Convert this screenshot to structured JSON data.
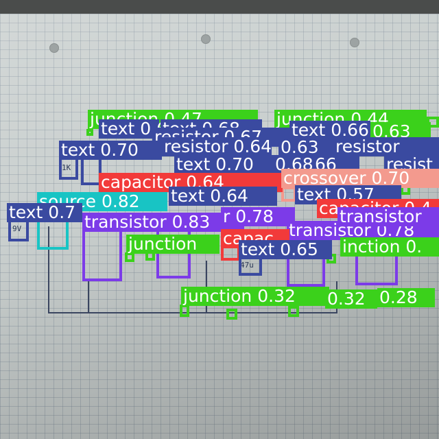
{
  "detections": [
    {
      "label": "junction 0.47",
      "cls": "junction"
    },
    {
      "label": "junction 0.44",
      "cls": "junction"
    },
    {
      "label": "text 0.68",
      "cls": "text"
    },
    {
      "label": "text 0.68",
      "cls": "text"
    },
    {
      "label": "resistor 0.67",
      "cls": "resistor"
    },
    {
      "label": "text 0.66",
      "cls": "text"
    },
    {
      "label": "0.63",
      "cls": "junction"
    },
    {
      "label": "text 0.70",
      "cls": "text"
    },
    {
      "label": "resistor 0.64",
      "cls": "resistor"
    },
    {
      "label": "0.63",
      "cls": "resistor"
    },
    {
      "label": "resistor",
      "cls": "resistor"
    },
    {
      "label": "text 0.70",
      "cls": "text"
    },
    {
      "label": "0.68",
      "cls": "text"
    },
    {
      "label": "66",
      "cls": "text"
    },
    {
      "label": "resist",
      "cls": "resistor"
    },
    {
      "label": "capacitor 0.64",
      "cls": "capacitor"
    },
    {
      "label": "crossover 0.70",
      "cls": "crossover"
    },
    {
      "label": "text 0.64",
      "cls": "text"
    },
    {
      "label": "text 0.57",
      "cls": "text"
    },
    {
      "label": "source 0.82",
      "cls": "source"
    },
    {
      "label": "text 0.7",
      "cls": "text"
    },
    {
      "label": "capacitor 0.4",
      "cls": "capacitor"
    },
    {
      "label": "transistor 0.83",
      "cls": "transistor"
    },
    {
      "label": "r 0.78",
      "cls": "transistor"
    },
    {
      "label": "transistor 0.78",
      "cls": "transistor"
    },
    {
      "label": "transistor",
      "cls": "transistor"
    },
    {
      "label": "capac",
      "cls": "capacitor"
    },
    {
      "label": "junction",
      "cls": "junction"
    },
    {
      "label": "text 0.65",
      "cls": "text"
    },
    {
      "label": "inction 0.",
      "cls": "junction"
    },
    {
      "label": "junction 0.32",
      "cls": "junction"
    },
    {
      "label": "0.32",
      "cls": "junction"
    },
    {
      "label": "0.28",
      "cls": "junction"
    }
  ],
  "handwriting": [
    "1K",
    "9V",
    "1K",
    "47u"
  ]
}
